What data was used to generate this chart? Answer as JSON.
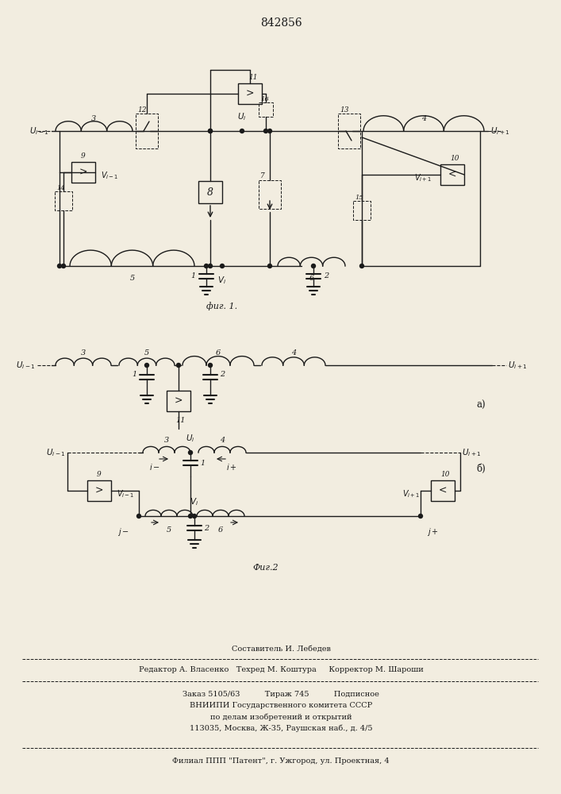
{
  "title": "842856",
  "fig1_caption": "фиг. 1.",
  "fig2_caption": "Фиг.2",
  "fig2a_label": "а)",
  "fig2b_label": "б)",
  "footer_line1": "Составитель И. Лебедев",
  "footer_line2": "Редактор А. Власенко   Техред М. Коштура     Корректор М. Шароши",
  "footer_line3": "Заказ 5105/63          Тираж 745          Подписное",
  "footer_line4": "ВНИИПИ Государственного комитета СССР",
  "footer_line5": "по делам изобретений и открытий",
  "footer_line6": "113035, Москва, Ж-35, Раушская наб., д. 4/5",
  "footer_line7": "Филиал ППП \"Патент\", г. Ужгород, ул. Проектная, 4",
  "bg_color": "#f2ede0",
  "line_color": "#1a1a1a",
  "font_size_title": 10,
  "font_size_label": 7.5,
  "font_size_footer": 7.0
}
